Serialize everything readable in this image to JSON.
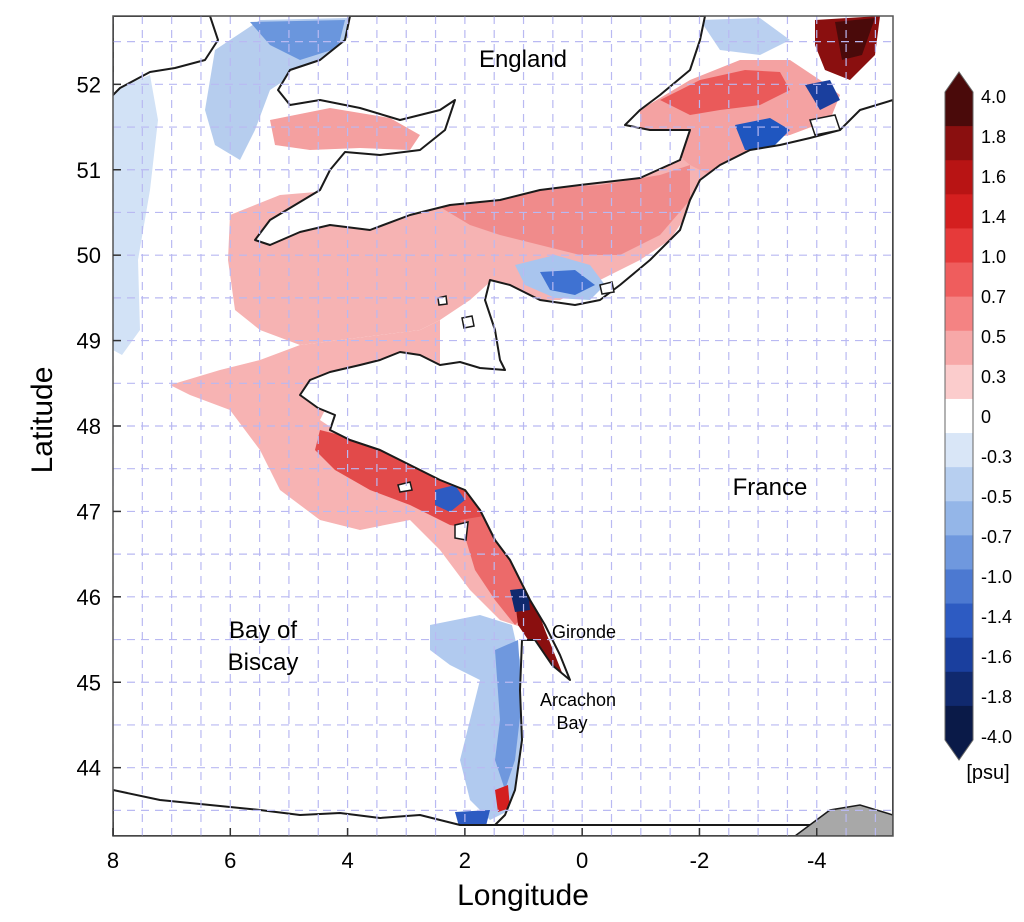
{
  "map": {
    "xlabel": "Longitude",
    "ylabel": "Latitude",
    "x_range": [
      8,
      -5.3
    ],
    "y_range": [
      43.2,
      52.8
    ],
    "x_ticks": [
      "8",
      "6",
      "4",
      "2",
      "0",
      "-2",
      "-4"
    ],
    "y_ticks": [
      "52",
      "51",
      "50",
      "49",
      "48",
      "47",
      "46",
      "45",
      "44"
    ],
    "grid": true,
    "region_labels": {
      "england": "England",
      "france": "France",
      "bay_line1": "Bay of",
      "bay_line2": "Biscay",
      "gironde": "Gironde",
      "arcachon_line1": "Arcachon",
      "arcachon_line2": "Bay"
    }
  },
  "colorbar": {
    "unit": "[psu]",
    "labels": [
      "4.0",
      "1.8",
      "1.6",
      "1.4",
      "1.0",
      "0.7",
      "0.5",
      "0.3",
      "0",
      "-0.3",
      "-0.5",
      "-0.7",
      "-1.0",
      "-1.4",
      "-1.6",
      "-1.8",
      "-4.0"
    ],
    "colors": [
      "#4a0a0a",
      "#8a0f0f",
      "#b81414",
      "#d41f1f",
      "#e63a3a",
      "#ef5d5d",
      "#f48383",
      "#f7a8a8",
      "#fbcccc",
      "#ffffff",
      "#d9e6f7",
      "#b7cff0",
      "#94b6e8",
      "#6f98de",
      "#4c79d1",
      "#2d5bc2",
      "#1a3f9e",
      "#10296e",
      "#0a1a48"
    ]
  },
  "colors": {
    "land": "#ffffff",
    "coast": "#1a1a1a",
    "grid": "#b9b9f2",
    "land_grey": "#a8a8a8"
  }
}
